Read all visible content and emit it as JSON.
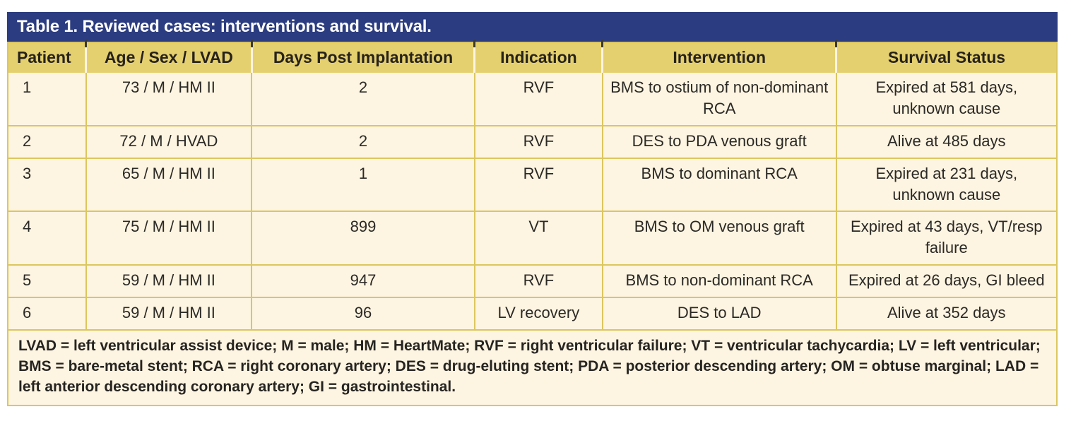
{
  "title": "Table 1. Reviewed cases: interventions and survival.",
  "colors": {
    "title_bar": "#2b3c80",
    "header_bg": "#e5d06f",
    "body_bg": "#fdf4e1",
    "grid_line": "#dcc65f",
    "title_text": "#ffffff",
    "text": "#2b2926"
  },
  "table": {
    "columns": [
      "Patient",
      "Age / Sex / LVAD",
      "Days Post Implantation",
      "Indication",
      "Intervention",
      "Survival Status"
    ],
    "col_keys": [
      "patient",
      "age-sex-lvad",
      "days-post-implantation",
      "indication",
      "intervention",
      "survival-status"
    ],
    "rows": [
      [
        "1",
        "73 / M / HM II",
        "2",
        "RVF",
        "BMS to ostium of non-dominant RCA",
        "Expired at 581 days, unknown cause"
      ],
      [
        "2",
        "72 / M / HVAD",
        "2",
        "RVF",
        "DES to PDA venous graft",
        "Alive at 485 days"
      ],
      [
        "3",
        "65 / M / HM II",
        "1",
        "RVF",
        "BMS to dominant RCA",
        "Expired at 231 days, unknown cause"
      ],
      [
        "4",
        "75 / M / HM II",
        "899",
        "VT",
        "BMS to OM venous graft",
        "Expired at 43 days, VT/resp failure"
      ],
      [
        "5",
        "59 / M / HM II",
        "947",
        "RVF",
        "BMS to non-dominant RCA",
        "Expired at 26 days, GI bleed"
      ],
      [
        "6",
        "59 / M / HM II",
        "96",
        "LV recovery",
        "DES to LAD",
        "Alive at 352 days"
      ]
    ]
  },
  "footnote": "LVAD = left ventricular assist device; M = male; HM = HeartMate; RVF = right ventricular failure; VT = ventricular tachycardia; LV = left ventricular; BMS = bare-metal stent; RCA = right coronary artery; DES = drug-eluting stent; PDA = posterior descending artery; OM = obtuse marginal; LAD = left anterior descending coronary artery; GI = gastrointestinal."
}
